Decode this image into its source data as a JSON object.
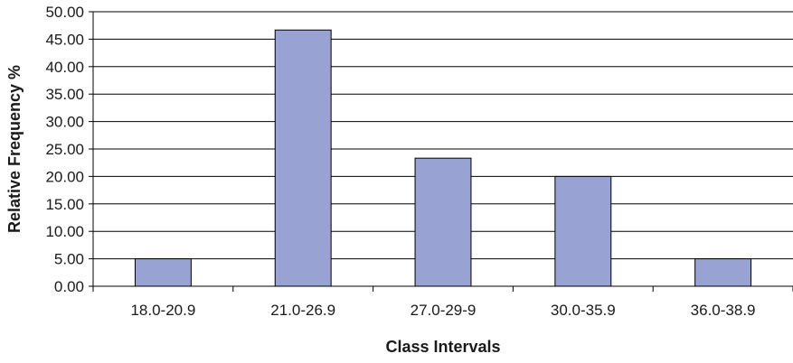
{
  "chart_data": {
    "type": "bar",
    "title": "",
    "xlabel": "Class Intervals",
    "ylabel": "Relative Frequency %",
    "categories": [
      "18.0-20.9",
      "21.0-26.9",
      "27.0-29-9",
      "30.0-35.9",
      "36.0-38.9"
    ],
    "values": [
      5.0,
      46.67,
      23.33,
      20.0,
      5.0
    ],
    "ylim": [
      0,
      50
    ],
    "y_ticks": [
      "0.00",
      "5.00",
      "10.00",
      "15.00",
      "20.00",
      "25.00",
      "30.00",
      "35.00",
      "40.00",
      "45.00",
      "50.00"
    ],
    "grid": "horizontal",
    "legend": "none",
    "bar_color": "#99a3d3",
    "bar_edge_color": "#000000"
  }
}
